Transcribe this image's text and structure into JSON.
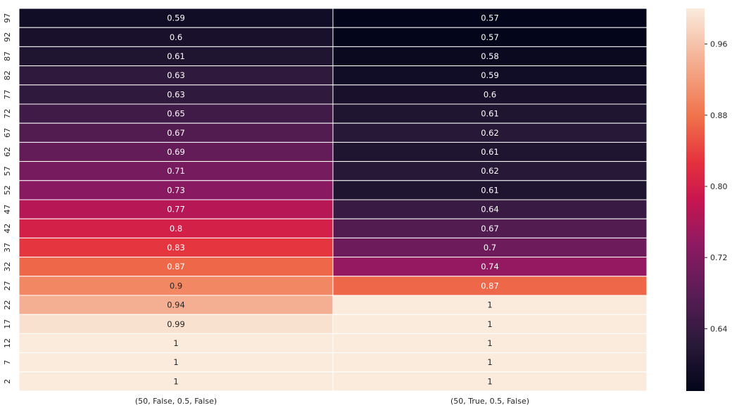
{
  "chart_data": {
    "type": "heatmap",
    "title": "",
    "xlabel": "",
    "ylabel": "",
    "columns": [
      "(50, False, 0.5, False)",
      "(50, True, 0.5, False)"
    ],
    "rows": [
      "97",
      "92",
      "87",
      "82",
      "77",
      "72",
      "67",
      "62",
      "57",
      "52",
      "47",
      "42",
      "37",
      "32",
      "27",
      "22",
      "17",
      "12",
      "7",
      "2"
    ],
    "values": [
      [
        0.59,
        0.57
      ],
      [
        0.6,
        0.57
      ],
      [
        0.61,
        0.58
      ],
      [
        0.63,
        0.59
      ],
      [
        0.63,
        0.6
      ],
      [
        0.65,
        0.61
      ],
      [
        0.67,
        0.62
      ],
      [
        0.69,
        0.61
      ],
      [
        0.71,
        0.62
      ],
      [
        0.73,
        0.61
      ],
      [
        0.77,
        0.64
      ],
      [
        0.8,
        0.67
      ],
      [
        0.83,
        0.7
      ],
      [
        0.87,
        0.74
      ],
      [
        0.9,
        0.87
      ],
      [
        0.94,
        1
      ],
      [
        0.99,
        1
      ],
      [
        1,
        1
      ],
      [
        1,
        1
      ],
      [
        1,
        1
      ]
    ],
    "annotations": [
      [
        "0.59",
        "0.57"
      ],
      [
        "0.6",
        "0.57"
      ],
      [
        "0.61",
        "0.58"
      ],
      [
        "0.63",
        "0.59"
      ],
      [
        "0.63",
        "0.6"
      ],
      [
        "0.65",
        "0.61"
      ],
      [
        "0.67",
        "0.62"
      ],
      [
        "0.69",
        "0.61"
      ],
      [
        "0.71",
        "0.62"
      ],
      [
        "0.73",
        "0.61"
      ],
      [
        "0.77",
        "0.64"
      ],
      [
        "0.8",
        "0.67"
      ],
      [
        "0.83",
        "0.7"
      ],
      [
        "0.87",
        "0.74"
      ],
      [
        "0.9",
        "0.87"
      ],
      [
        "0.94",
        "1"
      ],
      [
        "0.99",
        "1"
      ],
      [
        "1",
        "1"
      ],
      [
        "1",
        "1"
      ],
      [
        "1",
        "1"
      ]
    ],
    "colormap": "rocket",
    "colorbar": {
      "range": [
        0.57,
        1.0
      ],
      "ticks": [
        0.64,
        0.72,
        0.8,
        0.88,
        0.96
      ],
      "tick_labels": [
        "0.64",
        "0.72",
        "0.80",
        "0.88",
        "0.96"
      ]
    },
    "grid": false,
    "legend": "colorbar-right"
  }
}
